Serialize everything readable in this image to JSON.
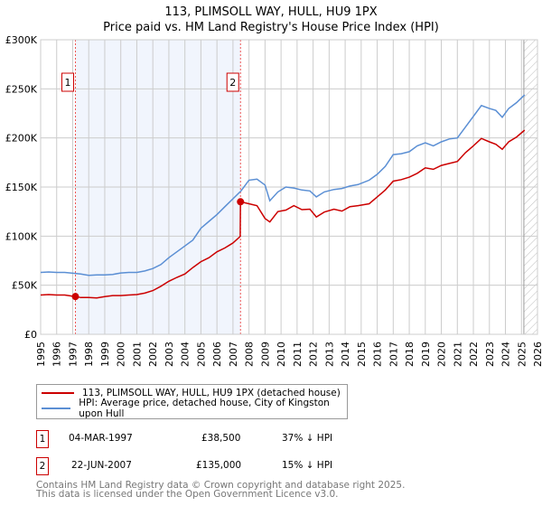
{
  "title_line1": "113, PLIMSOLL WAY, HULL, HU9 1PX",
  "title_line2": "Price paid vs. HM Land Registry's House Price Index (HPI)",
  "chart_data": {
    "type": "line",
    "title": "113, PLIMSOLL WAY, HULL, HU9 1PX — Price paid vs. HM Land Registry's House Price Index (HPI)",
    "xlim": [
      1995,
      2026
    ],
    "ylim": [
      0,
      300000
    ],
    "yticks": [
      0,
      50000,
      100000,
      150000,
      200000,
      250000,
      300000
    ],
    "ytick_labels": [
      "£0",
      "£50K",
      "£100K",
      "£150K",
      "£200K",
      "£250K",
      "£300K"
    ],
    "xticks": [
      1995,
      1996,
      1997,
      1998,
      1999,
      2000,
      2001,
      2002,
      2003,
      2004,
      2005,
      2006,
      2007,
      2008,
      2009,
      2010,
      2011,
      2012,
      2013,
      2014,
      2015,
      2016,
      2017,
      2018,
      2019,
      2020,
      2021,
      2022,
      2023,
      2024,
      2025,
      2026
    ],
    "grid": true,
    "shaded_range": [
      1997.17,
      2007.47
    ],
    "forecast_hatch_from": 2025.15,
    "series": [
      {
        "name": "113, PLIMSOLL WAY, HULL, HU9 1PX (detached house)",
        "color": "#cc0000",
        "points": [
          [
            1995,
            40000
          ],
          [
            1995.5,
            40500
          ],
          [
            1996,
            40000
          ],
          [
            1996.5,
            40000
          ],
          [
            1997.17,
            38500
          ],
          [
            1997.5,
            37500
          ],
          [
            1998,
            37500
          ],
          [
            1998.5,
            37000
          ],
          [
            1999,
            38500
          ],
          [
            1999.5,
            39500
          ],
          [
            2000,
            39500
          ],
          [
            2000.5,
            40000
          ],
          [
            2001,
            40500
          ],
          [
            2001.5,
            42000
          ],
          [
            2002,
            44500
          ],
          [
            2002.5,
            49000
          ],
          [
            2003,
            54000
          ],
          [
            2003.5,
            58000
          ],
          [
            2004,
            61500
          ],
          [
            2004.5,
            68000
          ],
          [
            2005,
            74000
          ],
          [
            2005.5,
            78000
          ],
          [
            2006,
            84000
          ],
          [
            2006.5,
            88000
          ],
          [
            2007,
            93000
          ],
          [
            2007.45,
            99700
          ],
          [
            2007.47,
            135000
          ],
          [
            2008,
            133000
          ],
          [
            2008.5,
            131000
          ],
          [
            2009,
            118000
          ],
          [
            2009.3,
            114500
          ],
          [
            2009.8,
            125000
          ],
          [
            2010.3,
            126500
          ],
          [
            2010.8,
            131000
          ],
          [
            2011.3,
            127000
          ],
          [
            2011.8,
            127500
          ],
          [
            2012.2,
            119500
          ],
          [
            2012.7,
            124500
          ],
          [
            2013.3,
            127500
          ],
          [
            2013.8,
            125500
          ],
          [
            2014.3,
            130000
          ],
          [
            2014.8,
            131000
          ],
          [
            2015.5,
            133000
          ],
          [
            2016,
            140000
          ],
          [
            2016.5,
            147000
          ],
          [
            2017,
            156000
          ],
          [
            2017.5,
            157500
          ],
          [
            2018,
            160000
          ],
          [
            2018.5,
            164000
          ],
          [
            2019,
            169500
          ],
          [
            2019.5,
            168000
          ],
          [
            2020,
            172000
          ],
          [
            2020.5,
            174000
          ],
          [
            2021,
            176000
          ],
          [
            2021.5,
            185000
          ],
          [
            2022,
            192000
          ],
          [
            2022.5,
            199500
          ],
          [
            2023,
            196000
          ],
          [
            2023.4,
            193500
          ],
          [
            2023.8,
            188500
          ],
          [
            2024.2,
            196000
          ],
          [
            2024.7,
            201000
          ],
          [
            2025.2,
            208000
          ]
        ]
      },
      {
        "name": "HPI: Average price, detached house, City of Kingston upon Hull",
        "color": "#5b8fd4",
        "points": [
          [
            1995,
            63000
          ],
          [
            1995.5,
            63500
          ],
          [
            1996,
            63000
          ],
          [
            1996.5,
            63000
          ],
          [
            1997.17,
            62000
          ],
          [
            1997.5,
            61500
          ],
          [
            1998,
            60000
          ],
          [
            1998.5,
            60500
          ],
          [
            1999,
            60500
          ],
          [
            1999.5,
            61000
          ],
          [
            2000,
            62500
          ],
          [
            2000.5,
            63000
          ],
          [
            2001,
            63000
          ],
          [
            2001.5,
            64500
          ],
          [
            2002,
            67000
          ],
          [
            2002.5,
            71000
          ],
          [
            2003,
            78000
          ],
          [
            2003.5,
            84000
          ],
          [
            2004,
            90000
          ],
          [
            2004.5,
            96000
          ],
          [
            2005,
            108000
          ],
          [
            2005.5,
            115000
          ],
          [
            2006,
            122000
          ],
          [
            2006.5,
            130000
          ],
          [
            2007,
            138000
          ],
          [
            2007.5,
            146000
          ],
          [
            2008,
            157000
          ],
          [
            2008.5,
            158000
          ],
          [
            2009,
            152000
          ],
          [
            2009.3,
            136000
          ],
          [
            2009.8,
            145000
          ],
          [
            2010.3,
            150000
          ],
          [
            2010.8,
            149000
          ],
          [
            2011.3,
            147000
          ],
          [
            2011.8,
            146000
          ],
          [
            2012.2,
            140000
          ],
          [
            2012.7,
            145000
          ],
          [
            2013.3,
            147500
          ],
          [
            2013.8,
            148500
          ],
          [
            2014.3,
            151000
          ],
          [
            2014.8,
            152500
          ],
          [
            2015.5,
            157000
          ],
          [
            2016,
            163000
          ],
          [
            2016.5,
            171000
          ],
          [
            2017,
            183000
          ],
          [
            2017.5,
            184000
          ],
          [
            2018,
            186000
          ],
          [
            2018.5,
            192000
          ],
          [
            2019,
            195000
          ],
          [
            2019.5,
            192000
          ],
          [
            2020,
            196000
          ],
          [
            2020.5,
            199000
          ],
          [
            2021,
            200000
          ],
          [
            2021.5,
            211000
          ],
          [
            2022,
            222000
          ],
          [
            2022.5,
            233000
          ],
          [
            2023,
            230000
          ],
          [
            2023.4,
            228000
          ],
          [
            2023.8,
            221000
          ],
          [
            2024.2,
            230000
          ],
          [
            2024.7,
            236000
          ],
          [
            2025.2,
            244000
          ]
        ]
      }
    ],
    "sales": [
      {
        "label": "1",
        "year": 1997.17,
        "price": 38500
      },
      {
        "label": "2",
        "year": 2007.47,
        "price": 135000
      }
    ]
  },
  "legend": {
    "property": "113, PLIMSOLL WAY, HULL, HU9 1PX (detached house)",
    "hpi": "HPI: Average price, detached house, City of Kingston upon Hull"
  },
  "transactions": [
    {
      "num": "1",
      "date": "04-MAR-1997",
      "price": "£38,500",
      "diff": "37% ↓ HPI"
    },
    {
      "num": "2",
      "date": "22-JUN-2007",
      "price": "£135,000",
      "diff": "15% ↓ HPI"
    }
  ],
  "footer": {
    "line1": "Contains HM Land Registry data © Crown copyright and database right 2025.",
    "line2": "This data is licensed under the Open Government Licence v3.0."
  }
}
